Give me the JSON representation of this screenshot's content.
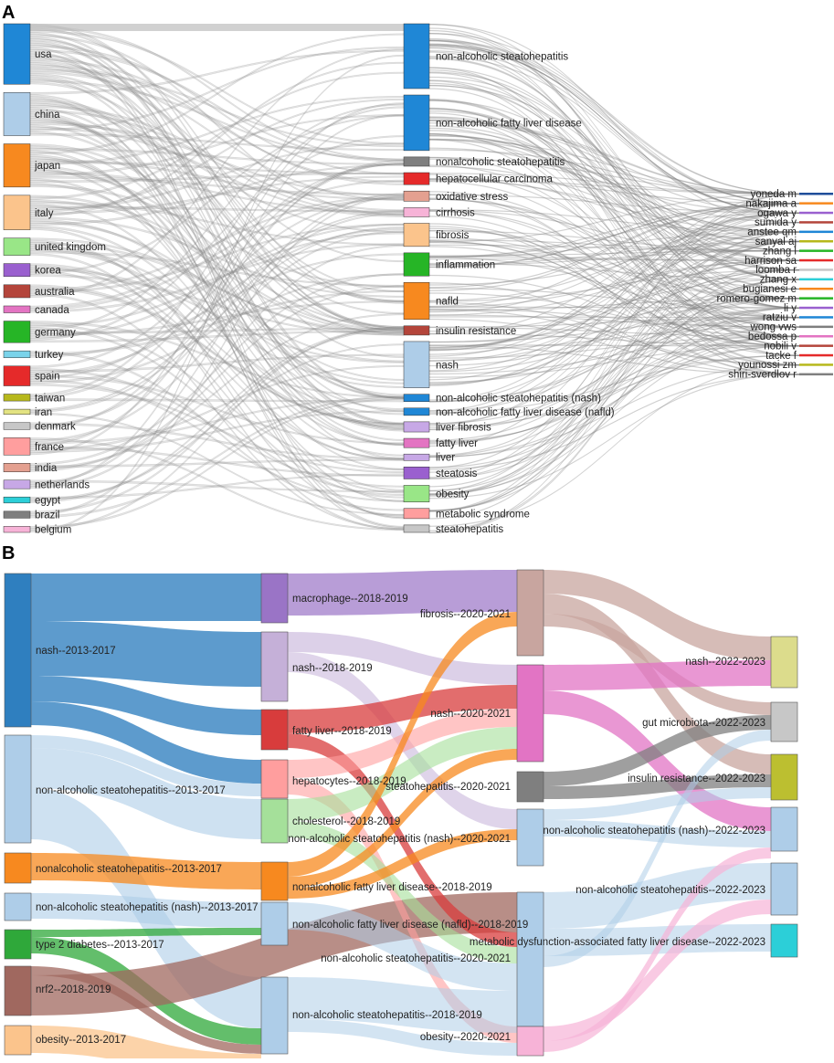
{
  "panelA": {
    "label": "A",
    "link_color": "#9a9a9a",
    "countries": [
      {
        "name": "usa",
        "color": "#1f87d6",
        "weight": 7
      },
      {
        "name": "china",
        "color": "#aecde8",
        "weight": 5
      },
      {
        "name": "japan",
        "color": "#f7891f",
        "weight": 5
      },
      {
        "name": "italy",
        "color": "#fbc48c",
        "weight": 4
      },
      {
        "name": "united kingdom",
        "color": "#99e687",
        "weight": 2
      },
      {
        "name": "korea",
        "color": "#9a60cf",
        "weight": 1.5
      },
      {
        "name": "australia",
        "color": "#b4453b",
        "weight": 1.5
      },
      {
        "name": "canada",
        "color": "#e374c2",
        "weight": 0.8
      },
      {
        "name": "germany",
        "color": "#26b526",
        "weight": 2.5
      },
      {
        "name": "turkey",
        "color": "#7ad3ea",
        "weight": 0.8
      },
      {
        "name": "spain",
        "color": "#e52a2a",
        "weight": 2.3
      },
      {
        "name": "taiwan",
        "color": "#b7b81c",
        "weight": 0.8
      },
      {
        "name": "iran",
        "color": "#e3e382",
        "weight": 0.6
      },
      {
        "name": "denmark",
        "color": "#c7c7c7",
        "weight": 0.8
      },
      {
        "name": "france",
        "color": "#ff9e9e",
        "weight": 2
      },
      {
        "name": "india",
        "color": "#e4a090",
        "weight": 1
      },
      {
        "name": "netherlands",
        "color": "#c7a8e6",
        "weight": 1
      },
      {
        "name": "egypt",
        "color": "#2ccfd8",
        "weight": 0.7
      },
      {
        "name": "brazil",
        "color": "#7f7f7f",
        "weight": 0.8
      },
      {
        "name": "belgium",
        "color": "#f7b3d7",
        "weight": 0.7
      }
    ],
    "keywords": [
      {
        "name": "non-alcoholic steatohepatitis",
        "color": "#1f87d6",
        "weight": 7
      },
      {
        "name": "non-alcoholic fatty liver disease",
        "color": "#1f87d6",
        "weight": 6
      },
      {
        "name": "nonalcoholic steatohepatitis",
        "color": "#7f7f7f",
        "weight": 1
      },
      {
        "name": "hepatocellular carcinoma",
        "color": "#e52a2a",
        "weight": 1.3
      },
      {
        "name": "oxidative stress",
        "color": "#e4a090",
        "weight": 1.1
      },
      {
        "name": "cirrhosis",
        "color": "#f7b3d7",
        "weight": 1
      },
      {
        "name": "fibrosis",
        "color": "#fbc48c",
        "weight": 2.5
      },
      {
        "name": "inflammation",
        "color": "#26b526",
        "weight": 2.5
      },
      {
        "name": "nafld",
        "color": "#f7891f",
        "weight": 4
      },
      {
        "name": "insulin resistance",
        "color": "#b4453b",
        "weight": 1
      },
      {
        "name": "nash",
        "color": "#aecde8",
        "weight": 5
      },
      {
        "name": "non-alcoholic steatohepatitis (nash)",
        "color": "#1f87d6",
        "weight": 0.8
      },
      {
        "name": "non-alcoholic fatty liver disease (nafld)",
        "color": "#1f87d6",
        "weight": 0.8
      },
      {
        "name": "liver fibrosis",
        "color": "#c7a8e6",
        "weight": 1.1
      },
      {
        "name": "fatty liver",
        "color": "#e374c2",
        "weight": 1
      },
      {
        "name": "liver",
        "color": "#c7a8e6",
        "weight": 0.7
      },
      {
        "name": "steatosis",
        "color": "#9a60cf",
        "weight": 1.3
      },
      {
        "name": "obesity",
        "color": "#99e687",
        "weight": 1.8
      },
      {
        "name": "metabolic syndrome",
        "color": "#ff9e9e",
        "weight": 1.1
      },
      {
        "name": "steatohepatitis",
        "color": "#c7c7c7",
        "weight": 0.8
      }
    ],
    "authors": [
      {
        "name": "yoneda m",
        "color": "#1f4e9a"
      },
      {
        "name": "nakajima a",
        "color": "#f7891f"
      },
      {
        "name": "ogawa y",
        "color": "#9a60cf"
      },
      {
        "name": "sumida y",
        "color": "#b4453b"
      },
      {
        "name": "anstee qm",
        "color": "#1f87d6"
      },
      {
        "name": "sanyal aj",
        "color": "#b7b81c"
      },
      {
        "name": "zhang l",
        "color": "#26b526"
      },
      {
        "name": "harrison sa",
        "color": "#e52a2a"
      },
      {
        "name": "loomba r",
        "color": "#c7c7c7"
      },
      {
        "name": "zhang x",
        "color": "#2ccfd8"
      },
      {
        "name": "bugianesi e",
        "color": "#f7891f"
      },
      {
        "name": "romero-gomez m",
        "color": "#26b526"
      },
      {
        "name": "li y",
        "color": "#9a60cf"
      },
      {
        "name": "ratziu v",
        "color": "#1f87d6"
      },
      {
        "name": "wong vws",
        "color": "#7f7f7f"
      },
      {
        "name": "bedossa p",
        "color": "#e374c2"
      },
      {
        "name": "nobili v",
        "color": "#b4453b"
      },
      {
        "name": "tacke f",
        "color": "#e52a2a"
      },
      {
        "name": "younossi zm",
        "color": "#b7b81c"
      },
      {
        "name": "shiri-sverdlov r",
        "color": "#7f7f7f"
      }
    ]
  },
  "panelB": {
    "label": "B",
    "col1": [
      {
        "name": "nash--2013-2017",
        "color": "#2f7fbf",
        "weight": 17
      },
      {
        "name": "non-alcoholic steatohepatitis--2013-2017",
        "color": "#aecde8",
        "weight": 12
      },
      {
        "name": "nonalcoholic steatohepatitis--2013-2017",
        "color": "#f7891f",
        "weight": 3.2
      },
      {
        "name": "non-alcoholic steatohepatitis (nash)--2013-2017",
        "color": "#aecde8",
        "weight": 3
      },
      {
        "name": "type 2 diabetes--2013-2017",
        "color": "#2fa83a",
        "weight": 3
      },
      {
        "name": "nrf2--2018-2019",
        "color": "#a0685f",
        "weight": 5.5
      },
      {
        "name": "obesity--2013-2017",
        "color": "#fbc48c",
        "weight": 3.2
      }
    ],
    "col2": [
      {
        "name": "macrophage--2018-2019",
        "color": "#9a74c6",
        "weight": 5.5
      },
      {
        "name": "nash--2018-2019",
        "color": "#c5b0d8",
        "weight": 7.5
      },
      {
        "name": "fatty liver--2018-2019",
        "color": "#d83c3c",
        "weight": 4.5
      },
      {
        "name": "hepatocytes--2018-2019",
        "color": "#ff9e9e",
        "weight": 4
      },
      {
        "name": "cholesterol--2018-2019",
        "color": "#a5e09a",
        "weight": 4.8
      },
      {
        "name": "nonalcoholic fatty liver disease--2018-2019",
        "color": "#f7891f",
        "weight": 4
      },
      {
        "name": "non-alcoholic fatty liver disease (nafld)--2018-2019",
        "color": "#aecde8",
        "weight": 3.5
      },
      {
        "name": "non-alcoholic steatohepatitis--2018-2019",
        "color": "#aecde8",
        "weight": 8.5
      }
    ],
    "col3": [
      {
        "name": "fibrosis--2020-2021",
        "color": "#c8a59f",
        "weight": 9.5
      },
      {
        "name": "nash--2020-2021",
        "color": "#e274c4",
        "weight": 10.5
      },
      {
        "name": "steatohepatitis--2020-2021",
        "color": "#7f7f7f",
        "weight": 3.2
      },
      {
        "name": "non-alcoholic steatohepatitis (nash)--2020-2021",
        "color": "#aecde8",
        "weight": 6
      },
      {
        "name": "non-alcoholic steatohepatitis--2020-2021",
        "color": "#aecde8",
        "weight": 18
      },
      {
        "name": "metabolic dysfunction-associated fatty liver disease--2022-2023",
        "color": "#aecde8",
        "weight": 0
      },
      {
        "name": "obesity--2020-2021",
        "color": "#f7b3d7",
        "weight": 3
      }
    ],
    "col4": [
      {
        "name": "nash--2022-2023",
        "color": "#dcdc8c",
        "weight": 6
      },
      {
        "name": "gut microbiota--2022-2023",
        "color": "#c7c7c7",
        "weight": 4.5
      },
      {
        "name": "insulin resistance--2022-2023",
        "color": "#bcbf30",
        "weight": 5
      },
      {
        "name": "non-alcoholic steatohepatitis (nash)--2022-2023",
        "color": "#aecde8",
        "weight": 5
      },
      {
        "name": "non-alcoholic steatohepatitis--2022-2023",
        "color": "#aecde8",
        "weight": 6
      },
      {
        "name": "metabolic dysfunction-associated fatty liver disease--2022-2023",
        "color": "#2ccfd8",
        "weight": 3.8
      }
    ]
  }
}
